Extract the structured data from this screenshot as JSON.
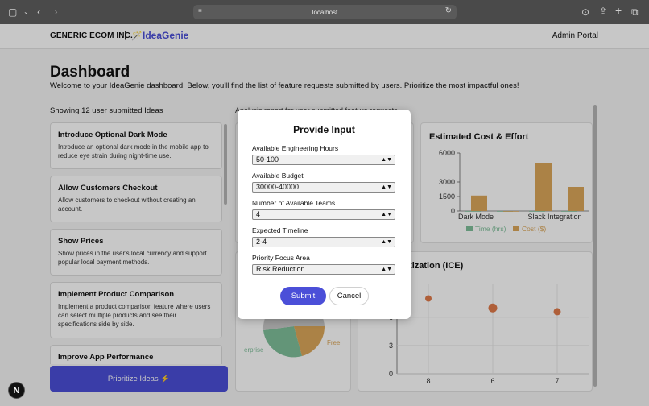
{
  "browser": {
    "url": "localhost"
  },
  "nav": {
    "company": "GENERIC ECOM INC.",
    "separator": "|",
    "app_name": "IdeaGenie",
    "portal": "Admin Portal"
  },
  "header": {
    "title": "Dashboard",
    "subtitle": "Welcome to your IdeaGenie dashboard. Below, you'll find the list of feature requests submitted by users. Prioritize the most impactful ones!"
  },
  "ideas": {
    "count_label": "Showing 12 user submitted Ideas",
    "items": [
      {
        "title": "Introduce Optional Dark Mode",
        "desc": "Introduce an optional dark mode in the mobile app to reduce eye strain during night-time use."
      },
      {
        "title": "Allow Customers Checkout",
        "desc": "Allow customers to checkout without creating an account."
      },
      {
        "title": "Show Prices",
        "desc": "Show prices in the user's local currency and support popular local payment methods."
      },
      {
        "title": "Implement Product Comparison",
        "desc": "Implement a product comparison feature where users can select multiple products and see their specifications side by side."
      },
      {
        "title": "Improve App Performance",
        "desc": ""
      }
    ],
    "prioritize_label": "Prioritize Ideas ⚡"
  },
  "analysis": {
    "label": "Analysis report for user submitted feature requests"
  },
  "cost_chart": {
    "title": "Estimated Cost & Effort",
    "chart_data": {
      "type": "bar",
      "categories": [
        "Dark Mode",
        "",
        "Slack Integration",
        ""
      ],
      "series": [
        {
          "name": "Time (hrs)",
          "values": [
            0,
            0,
            0,
            0
          ],
          "color": "#7fbf9a"
        },
        {
          "name": "Cost ($)",
          "values": [
            1600,
            0,
            5000,
            2500
          ],
          "color": "#dba75a"
        }
      ],
      "yticks": [
        "0",
        "1500",
        "3000",
        "6000"
      ],
      "ylim": [
        0,
        6000
      ]
    }
  },
  "ice_chart": {
    "title": "itization (ICE)",
    "chart_data": {
      "type": "scatter",
      "yticks": [
        "0",
        "3",
        "6"
      ],
      "xticks": [
        "8",
        "6",
        "7"
      ],
      "points": [
        {
          "x": "8",
          "y": 8
        },
        {
          "x": "6",
          "y": 7
        },
        {
          "x": "7",
          "y": 6.6
        }
      ],
      "color": "#e07a4a"
    }
  },
  "pie_chart": {
    "labels": [
      "erprise",
      "Freel"
    ]
  },
  "modal": {
    "title": "Provide Input",
    "fields": [
      {
        "label": "Available Engineering Hours",
        "value": "50-100"
      },
      {
        "label": "Available Budget",
        "value": "30000-40000"
      },
      {
        "label": "Number of Available Teams",
        "value": "4"
      },
      {
        "label": "Expected Timeline",
        "value": "2-4"
      },
      {
        "label": "Priority Focus Area",
        "value": "Risk Reduction"
      }
    ],
    "submit": "Submit",
    "cancel": "Cancel"
  },
  "badge": "N"
}
